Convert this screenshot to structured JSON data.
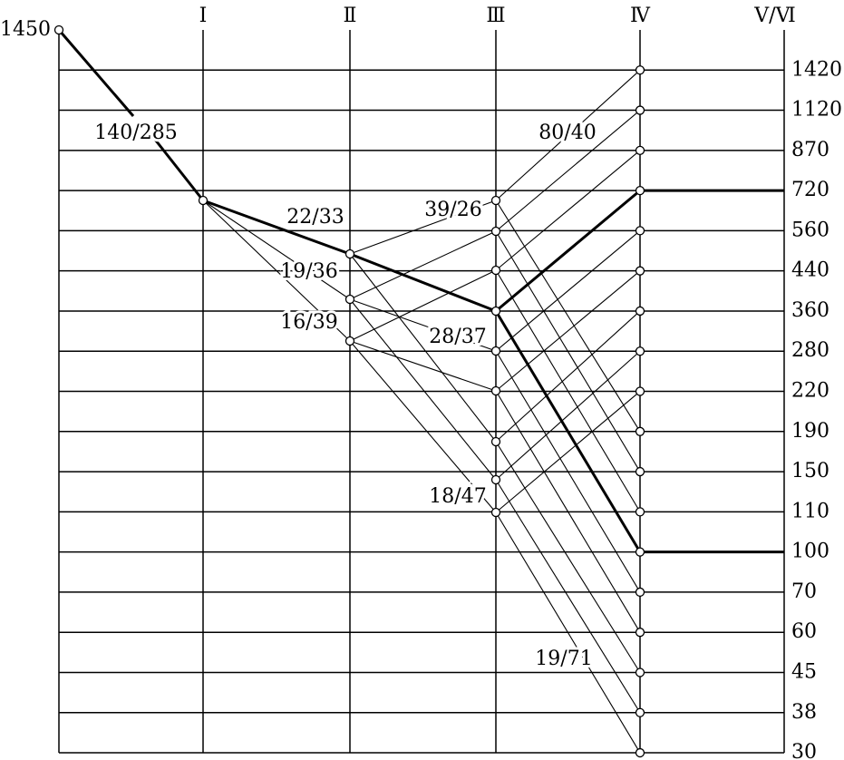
{
  "shafts": [
    "Ⅰ",
    "Ⅱ",
    "Ⅲ",
    "Ⅳ",
    "Ⅴ/Ⅵ"
  ],
  "speeds": [
    1450,
    1420,
    1120,
    870,
    720,
    560,
    440,
    360,
    280,
    220,
    190,
    150,
    110,
    100,
    70,
    60,
    45,
    38,
    30
  ],
  "ratios": [
    "140/285",
    "22/33",
    "39/26",
    "19/36",
    "16/39",
    "28/37",
    "80/40",
    "18/47",
    "19/71"
  ]
}
